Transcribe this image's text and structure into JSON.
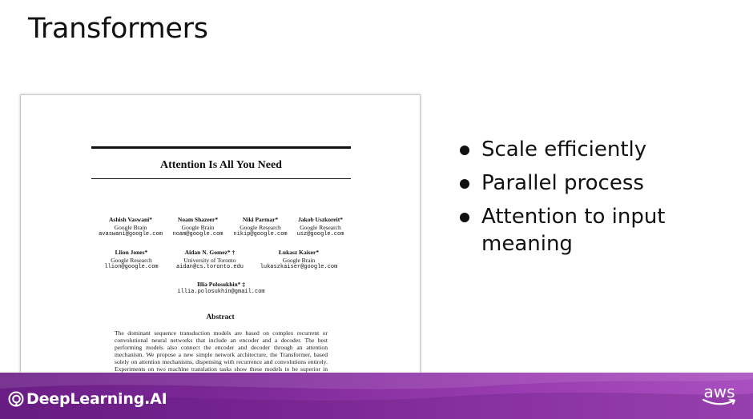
{
  "slide": {
    "title": "Transformers"
  },
  "paper": {
    "title": "Attention Is All You Need",
    "authors_row1": [
      {
        "name": "Ashish Vaswani*",
        "affiliation": "Google Brain",
        "email": "avaswani@google.com"
      },
      {
        "name": "Noam Shazeer*",
        "affiliation": "Google Brain",
        "email": "noam@google.com"
      },
      {
        "name": "Niki Parmar*",
        "affiliation": "Google Research",
        "email": "nikip@google.com"
      },
      {
        "name": "Jakob Uszkoreit*",
        "affiliation": "Google Research",
        "email": "usz@google.com"
      }
    ],
    "authors_row2": [
      {
        "name": "Llion Jones*",
        "affiliation": "Google Research",
        "email": "llion@google.com"
      },
      {
        "name": "Aidan N. Gomez* †",
        "affiliation": "University of Toronto",
        "email": "aidan@cs.toronto.edu"
      },
      {
        "name": "Łukasz Kaiser*",
        "affiliation": "Google Brain",
        "email": "lukaszkaiser@google.com"
      }
    ],
    "authors_row3": [
      {
        "name": "Illia Polosukhin* ‡",
        "affiliation": "",
        "email": "illia.polosukhin@gmail.com"
      }
    ],
    "abstract_title": "Abstract",
    "abstract_text": "The dominant sequence transduction models are based on complex recurrent or convolutional neural networks that include an encoder and a decoder. The best performing models also connect the encoder and decoder through an attention mechanism. We propose a new simple network architecture, the Transformer, based solely on attention mechanisms, dispensing with recurrence and convolutions entirely. Experiments on two machine translation tasks show these models to be superior in quality while being more parallelizable and requiring significantly less time to train."
  },
  "bullets": [
    "Scale efficiently",
    "Parallel process",
    "Attention to input meaning"
  ],
  "footer": {
    "brand": "DeepLearning.AI",
    "partner": "aws"
  },
  "colors": {
    "footer_start": "#6b1e86",
    "footer_end": "#a94fc0",
    "text": "#111111"
  }
}
